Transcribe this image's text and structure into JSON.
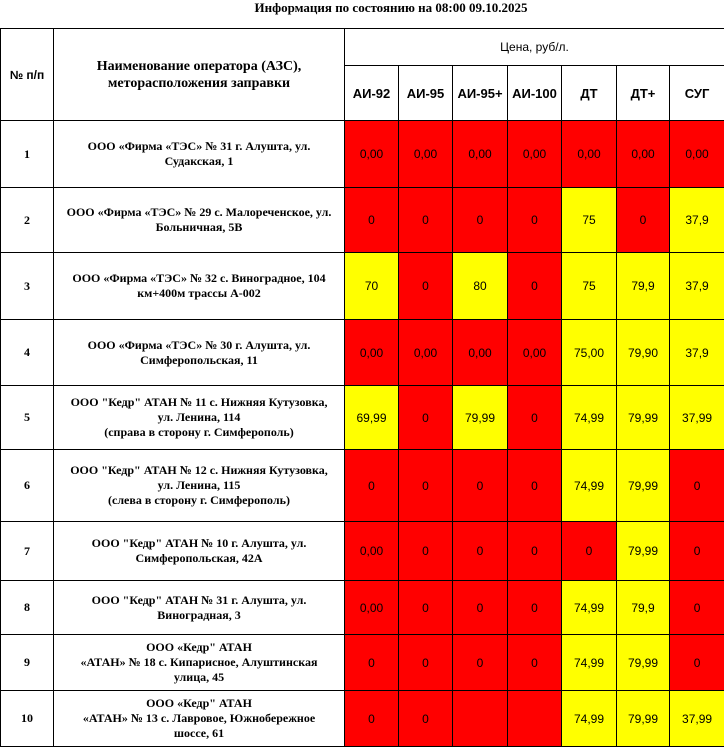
{
  "header": {
    "title": "Информация по состоянию на 08:00 09.10.2025"
  },
  "table": {
    "col_number": "№ п/п",
    "col_name": "Наименование оператора (АЗС),\nметорасположения заправки",
    "col_price": "Цена, руб/л.",
    "fuels": [
      "АИ-92",
      "АИ-95",
      "АИ-95+",
      "АИ-100",
      "ДТ",
      "ДТ+",
      "СУГ"
    ],
    "rows": [
      {
        "n": "1",
        "name": "ООО «Фирма «ТЭС» № 31 г. Алушта, ул.\nСудакская, 1",
        "prices": [
          "0,00",
          "0,00",
          "0,00",
          "0,00",
          "0,00",
          "0,00",
          "0,00"
        ]
      },
      {
        "n": "2",
        "name": "ООО «Фирма «ТЭС» № 29 с. Малореченское, ул.\nБольничная, 5В",
        "prices": [
          "0",
          "0",
          "0",
          "0",
          "75",
          "0",
          "37,9"
        ]
      },
      {
        "n": "3",
        "name": "ООО «Фирма «ТЭС» № 32 с. Виноградное,  104\nкм+400м трассы А-002",
        "prices": [
          "70",
          "0",
          "80",
          "0",
          "75",
          "79,9",
          "37,9"
        ]
      },
      {
        "n": "4",
        "name": "ООО «Фирма «ТЭС» № 30 г. Алушта, ул.\nСимферопольская, 11",
        "prices": [
          "0,00",
          "0,00",
          "0,00",
          "0,00",
          "75,00",
          "79,90",
          "37,9"
        ]
      },
      {
        "n": "5",
        "name": "ООО \"Кедр\" АТАН № 11 с. Нижняя Кутузовка,\nул. Ленина, 114\n(справа в сторону г. Симферополь)",
        "prices": [
          "69,99",
          "0",
          "79,99",
          "0",
          "74,99",
          "79,99",
          "37,99"
        ]
      },
      {
        "n": "6",
        "name": "ООО \"Кедр\" АТАН  № 12 с. Нижняя Кутузовка,\nул. Ленина, 115\n(слева в сторону г. Симферополь)",
        "prices": [
          "0",
          "0",
          "0",
          "0",
          "74,99",
          "79,99",
          "0"
        ]
      },
      {
        "n": "7",
        "name": "ООО \"Кедр\" АТАН  № 10 г. Алушта, ул.\nСимферопольская, 42А",
        "prices": [
          "0,00",
          "0",
          "0",
          "0",
          "0",
          "79,99",
          "0"
        ]
      },
      {
        "n": "8",
        "name": "ООО \"Кедр\" АТАН  № 31 г. Алушта, ул.\nВиноградная, 3",
        "prices": [
          "0,00",
          "0",
          "0",
          "0",
          "74,99",
          "79,9",
          "0"
        ]
      },
      {
        "n": "9",
        "name": "ООО «Кедр\" АТАН\n«АТАН» № 18 с. Кипарисное, Алуштинская\nулица, 45",
        "prices": [
          "0",
          "0",
          "0",
          "0",
          "74,99",
          "79,99",
          "0"
        ]
      },
      {
        "n": "10",
        "name": "ООО «Кедр\" АТАН\n«АТАН» № 13 с. Лавровое, Южнобережное\nшоссе, 61",
        "prices": [
          "0",
          "0",
          null,
          null,
          "74,99",
          "79,99",
          "37,99"
        ]
      }
    ]
  }
}
